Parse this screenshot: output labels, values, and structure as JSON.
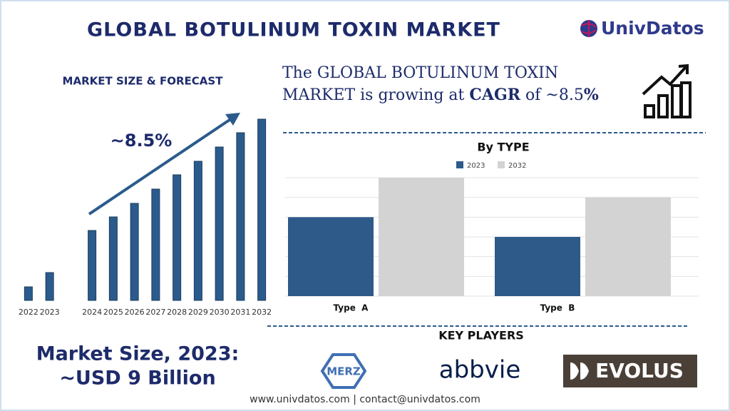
{
  "header": {
    "title": "GLOBAL BOTULINUM TOXIN MARKET",
    "brand": "UnivDatos"
  },
  "headline": {
    "line1": "The GLOBAL BOTULINUM TOXIN",
    "line2": "MARKET  is growing at ",
    "emphasis1": "CAGR",
    "middle": " of ~8.5",
    "emphasis2": "%"
  },
  "chart_data": [
    {
      "type": "bar",
      "title": "MARKET SIZE & FORECAST",
      "annotation": "~8.5%",
      "categories": [
        "2022",
        "2023",
        null,
        "2024",
        "2025",
        "2026",
        "2027",
        "2028",
        "2029",
        "2030",
        "2031",
        "2032"
      ],
      "values": [
        19,
        39,
        null,
        98,
        117,
        136,
        156,
        176,
        195,
        215,
        235,
        254
      ],
      "color": "#2b5b8c",
      "ylim": [
        0,
        260
      ]
    },
    {
      "type": "grouped-bar",
      "title": "By TYPE",
      "categories": [
        "Type  A",
        "Type  B"
      ],
      "series": [
        {
          "name": "2023",
          "color": "#2e5a8a",
          "values": [
            4,
            3
          ]
        },
        {
          "name": "2032",
          "color": "#d3d3d3",
          "values": [
            6,
            5
          ]
        }
      ],
      "ylim": [
        0,
        6
      ],
      "yticks": [
        0,
        1,
        2,
        3,
        4,
        5,
        6
      ],
      "grid": true,
      "tick_labels": false,
      "legend": "top"
    }
  ],
  "market_size": {
    "label": "Market Size, 2023:",
    "value": "~USD 9 Billion"
  },
  "key_players": {
    "title": "KEY PLAYERS",
    "companies": [
      "MERZ",
      "abbvie",
      "EVOLUS"
    ]
  },
  "footer": "www.univdatos.com | contact@univdatos.com"
}
